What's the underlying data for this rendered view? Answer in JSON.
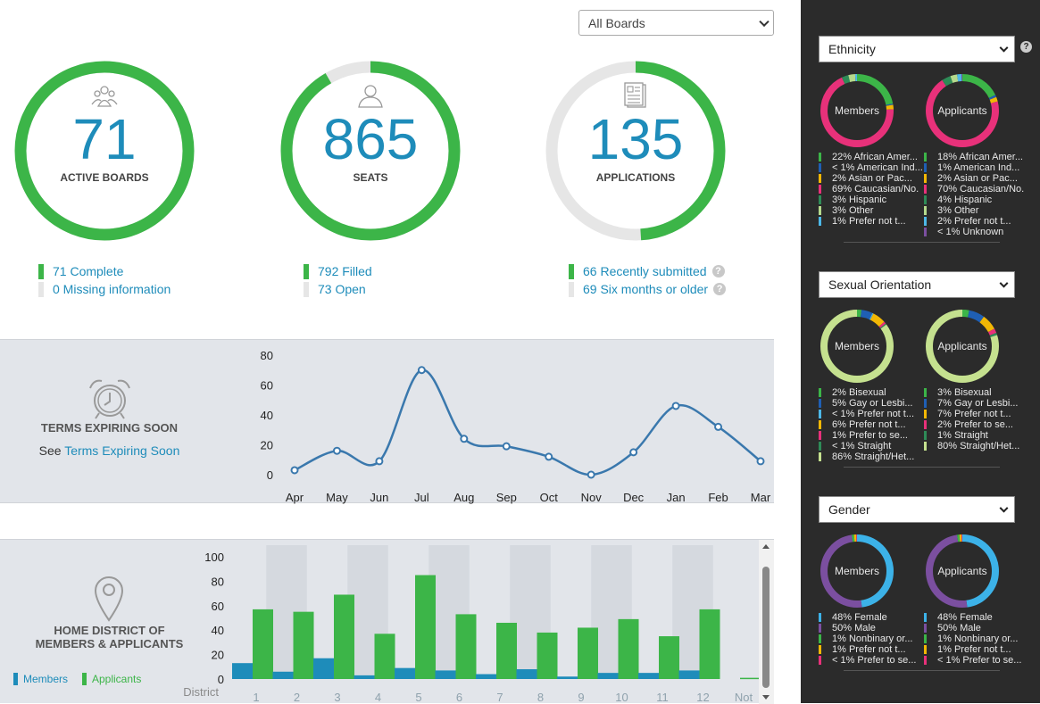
{
  "board_select": {
    "value": "All Boards"
  },
  "rings": [
    {
      "number": "71",
      "label": "ACTIVE BOARDS",
      "icon": "group-icon",
      "fraction": 1.0
    },
    {
      "number": "865",
      "label": "SEATS",
      "icon": "person-icon",
      "fraction": 0.916
    },
    {
      "number": "135",
      "label": "APPLICATIONS",
      "icon": "document-icon",
      "fraction": 0.49
    }
  ],
  "stats": {
    "boards": [
      {
        "text": "71 Complete",
        "color": "#3cb548"
      },
      {
        "text": "0 Missing information",
        "color": "#e6e6e6"
      }
    ],
    "seats": [
      {
        "text": "792 Filled",
        "color": "#3cb548"
      },
      {
        "text": "73 Open",
        "color": "#e6e6e6"
      }
    ],
    "applications": [
      {
        "text": "66 Recently submitted",
        "color": "#3cb548"
      },
      {
        "text": "69 Six months or older",
        "color": "#e6e6e6"
      }
    ]
  },
  "terms_panel": {
    "title": "TERMS EXPIRING SOON",
    "see_prefix": "See",
    "see_link": "Terms Expiring Soon"
  },
  "district_panel": {
    "title_line1": "HOME DISTRICT OF",
    "title_line2": "MEMBERS & APPLICANTS",
    "legend_members": "Members",
    "legend_applicants": "Applicants",
    "axis_label": "District"
  },
  "colors": {
    "green": "#3cb548",
    "blue": "#1e8cba",
    "line": "#3a78ad",
    "track": "#e6e6e6"
  },
  "chart_data": [
    {
      "type": "line",
      "categories": [
        "Apr",
        "May",
        "Jun",
        "Jul",
        "Aug",
        "Sep",
        "Oct",
        "Nov",
        "Dec",
        "Jan",
        "Feb",
        "Mar"
      ],
      "values": [
        3,
        16,
        9,
        70,
        24,
        19,
        12,
        0,
        15,
        46,
        32,
        9
      ],
      "yticks": [
        0,
        20,
        40,
        60,
        80
      ],
      "ylim": [
        0,
        80
      ]
    },
    {
      "type": "bar",
      "categories": [
        "1",
        "2",
        "3",
        "4",
        "5",
        "6",
        "7",
        "8",
        "9",
        "10",
        "11",
        "12",
        "Not"
      ],
      "series": [
        {
          "name": "Members",
          "values": [
            13,
            6,
            17,
            3,
            9,
            7,
            4,
            8,
            2,
            5,
            5,
            7,
            0
          ]
        },
        {
          "name": "Applicants",
          "values": [
            57,
            55,
            69,
            37,
            85,
            53,
            46,
            38,
            42,
            49,
            35,
            57,
            1
          ]
        }
      ],
      "yticks": [
        0,
        20,
        40,
        60,
        80,
        100
      ],
      "ylim": [
        0,
        100
      ],
      "xlabel": "District"
    }
  ],
  "sidebar": {
    "help": "?",
    "sections": [
      {
        "select": "Ethnicity",
        "members_label": "Members",
        "applicants_label": "Applicants",
        "members_legend": [
          {
            "text": "22% African Amer...",
            "color": "#3cb548",
            "value": 22
          },
          {
            "text": "< 1% American Ind...",
            "color": "#1f5fb4",
            "value": 0.5
          },
          {
            "text": "2% Asian or Pac...",
            "color": "#f2b705",
            "value": 2
          },
          {
            "text": "69% Caucasian/No.",
            "color": "#e8317a",
            "value": 69
          },
          {
            "text": "3% Hispanic",
            "color": "#2e8b57",
            "value": 3
          },
          {
            "text": "3% Other",
            "color": "#b5d98c",
            "value": 3
          },
          {
            "text": "1% Prefer not t...",
            "color": "#4db8e8",
            "value": 1
          }
        ],
        "applicants_legend": [
          {
            "text": "18% African Amer...",
            "color": "#3cb548",
            "value": 18
          },
          {
            "text": "1% American Ind...",
            "color": "#1f5fb4",
            "value": 1
          },
          {
            "text": "2% Asian or Pac...",
            "color": "#f2b705",
            "value": 2
          },
          {
            "text": "70% Caucasian/No.",
            "color": "#e8317a",
            "value": 70
          },
          {
            "text": "4% Hispanic",
            "color": "#2e8b57",
            "value": 4
          },
          {
            "text": "3% Other",
            "color": "#b5d98c",
            "value": 3
          },
          {
            "text": "2% Prefer not t...",
            "color": "#4db8e8",
            "value": 2
          },
          {
            "text": "< 1% Unknown",
            "color": "#7b4fa0",
            "value": 0.5
          }
        ]
      },
      {
        "select": "Sexual Orientation",
        "members_label": "Members",
        "applicants_label": "Applicants",
        "members_legend": [
          {
            "text": "2% Bisexual",
            "color": "#3cb548",
            "value": 2
          },
          {
            "text": "5% Gay or Lesbi...",
            "color": "#1f5fb4",
            "value": 5
          },
          {
            "text": "< 1% Prefer not t...",
            "color": "#4db8e8",
            "value": 0.5
          },
          {
            "text": "6% Prefer not t...",
            "color": "#f2b705",
            "value": 6
          },
          {
            "text": "1% Prefer to se...",
            "color": "#e8317a",
            "value": 1
          },
          {
            "text": "< 1% Straight",
            "color": "#2e8b57",
            "value": 0.5
          },
          {
            "text": "86% Straight/Het...",
            "color": "#c5e18f",
            "value": 86
          }
        ],
        "applicants_legend": [
          {
            "text": "3% Bisexual",
            "color": "#3cb548",
            "value": 3
          },
          {
            "text": "7% Gay or Lesbi...",
            "color": "#1f5fb4",
            "value": 7
          },
          {
            "text": "7% Prefer not t...",
            "color": "#f2b705",
            "value": 7
          },
          {
            "text": "2% Prefer to se...",
            "color": "#e8317a",
            "value": 2
          },
          {
            "text": "1% Straight",
            "color": "#2e8b57",
            "value": 1
          },
          {
            "text": "80% Straight/Het...",
            "color": "#c5e18f",
            "value": 80
          }
        ]
      },
      {
        "select": "Gender",
        "members_label": "Members",
        "applicants_label": "Applicants",
        "members_legend": [
          {
            "text": "48% Female",
            "color": "#3cb2e8",
            "value": 48
          },
          {
            "text": "50% Male",
            "color": "#7b4fa0",
            "value": 50
          },
          {
            "text": "1% Nonbinary or...",
            "color": "#3cb548",
            "value": 1
          },
          {
            "text": "1% Prefer not t...",
            "color": "#f2b705",
            "value": 1
          },
          {
            "text": "< 1% Prefer to se...",
            "color": "#e8317a",
            "value": 0.5
          }
        ],
        "applicants_legend": [
          {
            "text": "48% Female",
            "color": "#3cb2e8",
            "value": 48
          },
          {
            "text": "50% Male",
            "color": "#7b4fa0",
            "value": 50
          },
          {
            "text": "1% Nonbinary or...",
            "color": "#3cb548",
            "value": 1
          },
          {
            "text": "1% Prefer not t...",
            "color": "#f2b705",
            "value": 1
          },
          {
            "text": "< 1% Prefer to se...",
            "color": "#e8317a",
            "value": 0.5
          }
        ]
      }
    ]
  }
}
